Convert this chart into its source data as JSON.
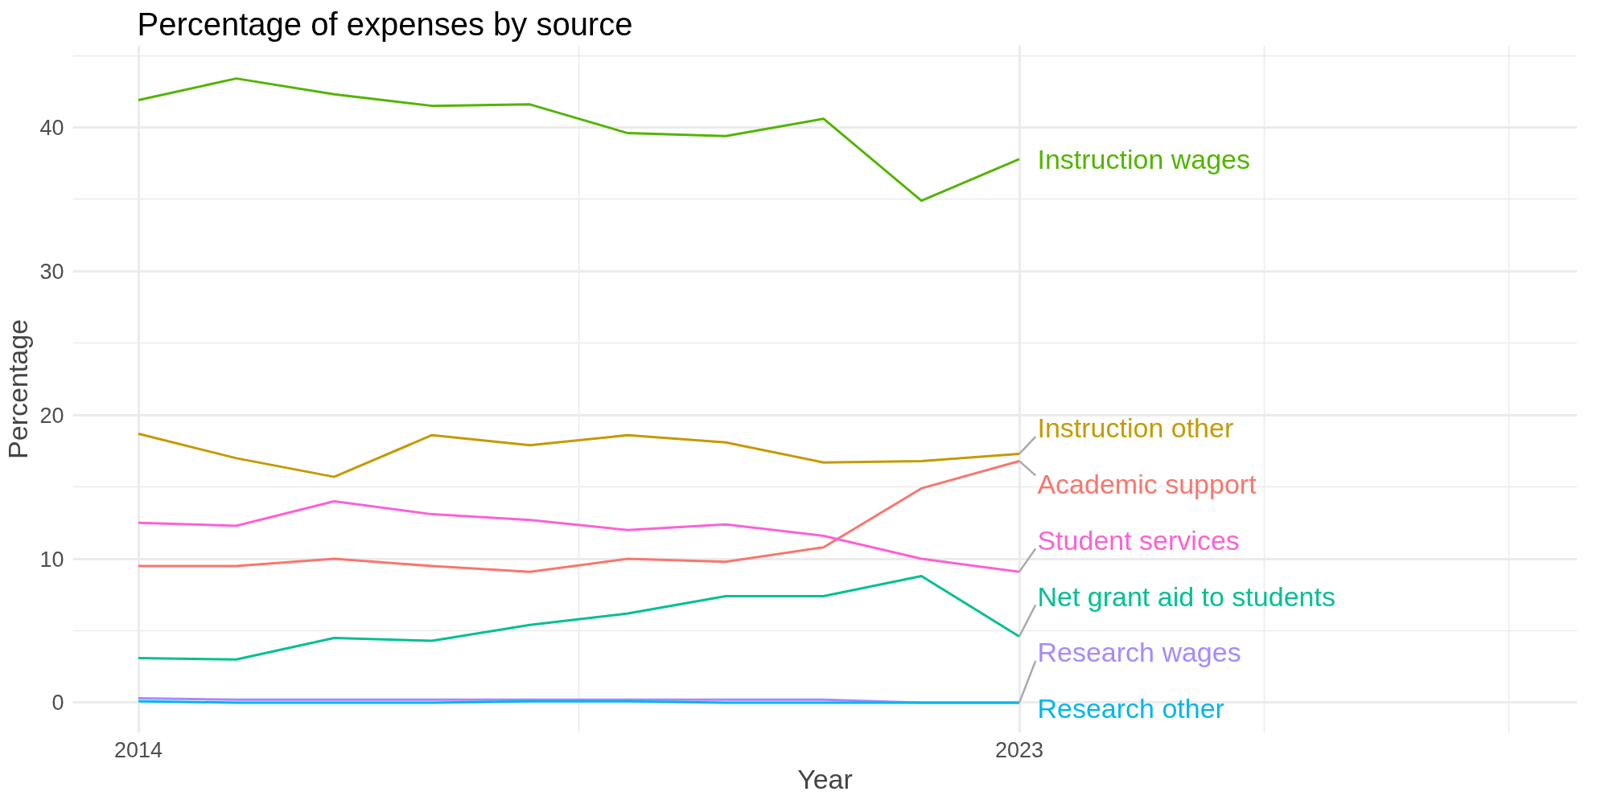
{
  "chart_data": {
    "type": "line",
    "title": "Percentage of expenses by source",
    "xlabel": "Year",
    "ylabel": "Percentage",
    "x": [
      2014,
      2015,
      2016,
      2017,
      2018,
      2019,
      2020,
      2021,
      2022,
      2023
    ],
    "xlim": [
      2013.33,
      2028.7
    ],
    "xticks": [
      2014,
      2023,
      {
        "value": 2018.5,
        "label": null
      },
      {
        "value": 2025.5,
        "label": null
      },
      {
        "value": 2028,
        "label": null
      }
    ],
    "ylim": [
      -2.1,
      45.7
    ],
    "yticks": [
      0,
      10,
      20,
      30,
      40,
      {
        "value": 5,
        "label": null
      },
      {
        "value": 15,
        "label": null
      },
      {
        "value": 25,
        "label": null
      },
      {
        "value": 35,
        "label": null
      },
      {
        "value": 45,
        "label": null
      }
    ],
    "grid": true,
    "legend": false,
    "marker": "none",
    "line_style": "solid",
    "series": [
      {
        "name": "Instruction wages",
        "color": "#53b400",
        "values": [
          41.9,
          43.4,
          42.3,
          41.5,
          41.6,
          39.6,
          39.4,
          40.6,
          34.9,
          37.8
        ]
      },
      {
        "name": "Instruction other",
        "color": "#c49a00",
        "values": [
          18.7,
          17.0,
          15.7,
          18.6,
          17.9,
          18.6,
          18.1,
          16.7,
          16.8,
          17.3
        ]
      },
      {
        "name": "Academic support",
        "color": "#f8766d",
        "values": [
          9.5,
          9.5,
          10.0,
          9.5,
          9.1,
          10.0,
          9.8,
          10.8,
          14.9,
          16.8
        ]
      },
      {
        "name": "Student services",
        "color": "#fb61d7",
        "values": [
          12.5,
          12.3,
          14.0,
          13.1,
          12.7,
          12.0,
          12.4,
          11.6,
          10.0,
          9.1
        ]
      },
      {
        "name": "Net grant aid to students",
        "color": "#00c094",
        "values": [
          3.1,
          3.0,
          4.5,
          4.3,
          5.4,
          6.2,
          7.4,
          7.4,
          8.8,
          4.6
        ]
      },
      {
        "name": "Research wages",
        "color": "#a58aff",
        "values": [
          0.3,
          0.2,
          0.2,
          0.2,
          0.2,
          0.2,
          0.2,
          0.2,
          0.0,
          0.0
        ]
      },
      {
        "name": "Research other",
        "color": "#00b6eb",
        "values": [
          0.1,
          0.0,
          0.0,
          0.0,
          0.1,
          0.1,
          0.0,
          0.0,
          0.0,
          0.0
        ]
      }
    ]
  }
}
